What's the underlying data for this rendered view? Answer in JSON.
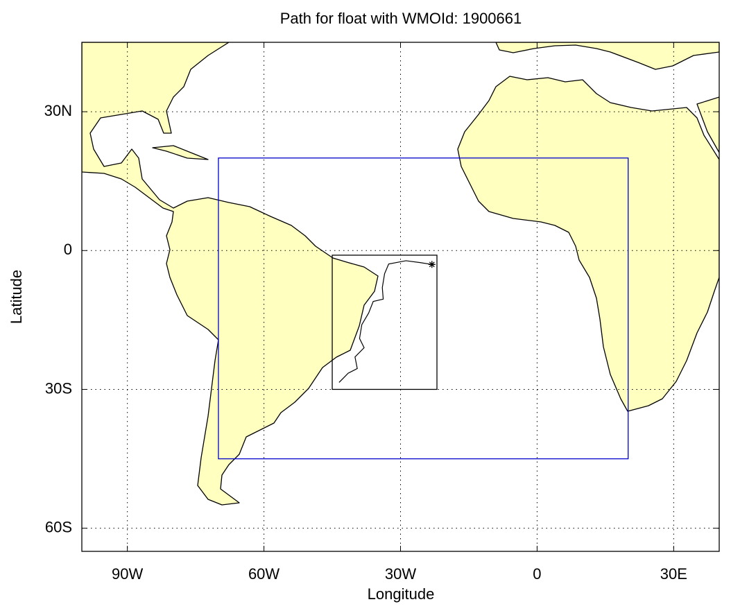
{
  "chart_data": {
    "type": "map",
    "title": "Path for float with WMOId: 1900661",
    "x_label": "Longitude",
    "y_label": "Latitude",
    "xlim": [
      -100,
      40
    ],
    "ylim": [
      -65,
      45
    ],
    "xticks": [
      {
        "value": -90,
        "label": "90W"
      },
      {
        "value": -60,
        "label": "60W"
      },
      {
        "value": -30,
        "label": "30W"
      },
      0,
      {
        "value": 30,
        "label": "30E"
      }
    ],
    "yticks": [
      {
        "value": -60,
        "label": "60S"
      },
      {
        "value": -30,
        "label": "30S"
      },
      0,
      {
        "value": 30,
        "label": "30N"
      }
    ],
    "grid": true,
    "land_color": "#ffffc0",
    "regions": [
      {
        "lon": [
          -70,
          20
        ],
        "lat": [
          -45,
          20
        ],
        "color": "#0000cc"
      },
      {
        "lon": [
          -45,
          -22
        ],
        "lat": [
          -30,
          -1
        ],
        "color": "#000000"
      }
    ],
    "float_path": {
      "color": "#000000",
      "lon": [
        -23.1,
        -25.7,
        -28.8,
        -32.6,
        -33.5,
        -34.0,
        -33.8,
        -36.0,
        -37.0,
        -38.5,
        -39.0,
        -38.0,
        -40.0,
        -39.5,
        -41.5,
        -42.5,
        -43.5
      ],
      "lat": [
        -3.0,
        -2.6,
        -2.2,
        -2.9,
        -5.0,
        -8.0,
        -10.5,
        -11.0,
        -13.5,
        -16.0,
        -19.0,
        -21.0,
        -23.0,
        -25.5,
        -26.5,
        -27.5,
        -28.5
      ]
    }
  }
}
